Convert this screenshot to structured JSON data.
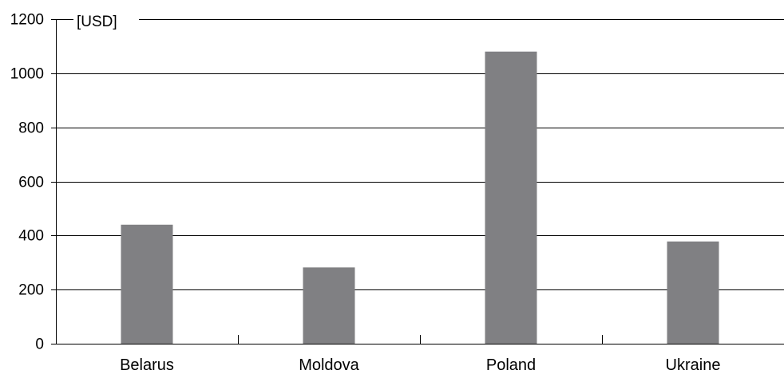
{
  "chart_data": {
    "type": "bar",
    "unit_label": "[USD]",
    "categories": [
      "Belarus",
      "Moldova",
      "Poland",
      "Ukraine"
    ],
    "values": [
      440,
      282,
      1080,
      378
    ],
    "ylim": [
      0,
      1200
    ],
    "yticks": [
      "0",
      "200",
      "400",
      "600",
      "800",
      "1000",
      "1200"
    ],
    "grid": true,
    "bar_color": "#808083"
  }
}
